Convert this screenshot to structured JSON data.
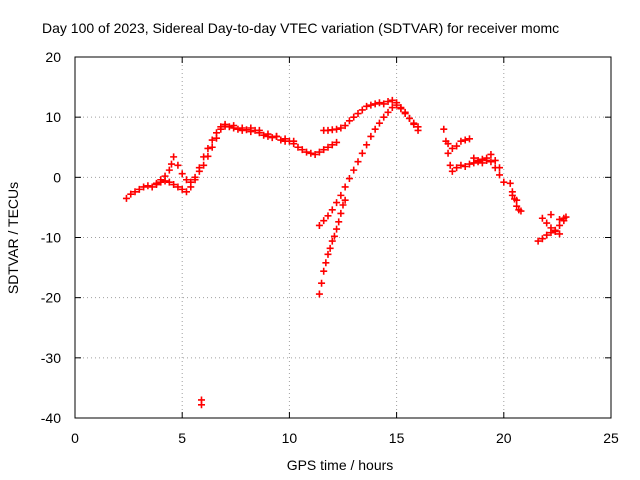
{
  "chart_data": {
    "type": "scatter",
    "title": "Day 100 of 2023, Sidereal Day-to-day VTEC variation (SDTVAR) for receiver momc",
    "xlabel": "GPS time / hours",
    "ylabel": "SDTVAR / TECUs",
    "xlim": [
      0,
      25
    ],
    "ylim": [
      -40,
      20
    ],
    "xticks": [
      0,
      5,
      10,
      15,
      20,
      25
    ],
    "yticks": [
      -40,
      -30,
      -20,
      -10,
      0,
      10,
      20
    ],
    "grid": true,
    "colors": {
      "series": "#ff0000",
      "grid": "#a0a0a0",
      "axes": "#000000"
    },
    "series": [
      {
        "name": "SDTVAR",
        "marker": "+",
        "points": [
          [
            2.4,
            -3.5
          ],
          [
            2.6,
            -2.8
          ],
          [
            2.8,
            -2.4
          ],
          [
            3.0,
            -2.0
          ],
          [
            3.2,
            -1.6
          ],
          [
            3.4,
            -1.4
          ],
          [
            3.6,
            -1.6
          ],
          [
            3.8,
            -1.2
          ],
          [
            4.0,
            -0.8
          ],
          [
            4.2,
            -0.6
          ],
          [
            4.4,
            -0.8
          ],
          [
            4.6,
            -1.2
          ],
          [
            4.8,
            -1.6
          ],
          [
            5.0,
            -2.0
          ],
          [
            5.2,
            -2.4
          ],
          [
            5.4,
            -1.6
          ],
          [
            5.6,
            -0.4
          ],
          [
            5.8,
            1.0
          ],
          [
            6.0,
            2.0
          ],
          [
            6.2,
            3.5
          ],
          [
            6.4,
            5.0
          ],
          [
            6.6,
            6.5
          ],
          [
            6.8,
            8.0
          ],
          [
            7.0,
            8.5
          ],
          [
            7.2,
            8.4
          ],
          [
            7.4,
            8.2
          ],
          [
            7.6,
            8.0
          ],
          [
            7.8,
            7.8
          ],
          [
            8.0,
            7.9
          ],
          [
            8.2,
            7.6
          ],
          [
            8.4,
            7.8
          ],
          [
            8.6,
            7.4
          ],
          [
            8.8,
            7.0
          ],
          [
            9.0,
            6.8
          ],
          [
            9.2,
            6.6
          ],
          [
            9.4,
            6.8
          ],
          [
            9.6,
            6.2
          ],
          [
            9.8,
            6.0
          ],
          [
            10.0,
            6.0
          ],
          [
            10.2,
            5.6
          ],
          [
            10.4,
            5.0
          ],
          [
            10.6,
            4.6
          ],
          [
            10.8,
            4.2
          ],
          [
            11.0,
            4.0
          ],
          [
            11.2,
            3.8
          ],
          [
            11.4,
            4.2
          ],
          [
            11.6,
            4.6
          ],
          [
            11.8,
            5.0
          ],
          [
            12.0,
            5.4
          ],
          [
            12.2,
            5.8
          ],
          [
            3.8,
            -1.0
          ],
          [
            4.0,
            -0.4
          ],
          [
            4.2,
            0.2
          ],
          [
            4.4,
            1.2
          ],
          [
            4.5,
            2.2
          ],
          [
            4.6,
            3.4
          ],
          [
            4.8,
            2.0
          ],
          [
            5.0,
            0.6
          ],
          [
            5.2,
            -0.4
          ],
          [
            5.4,
            -0.8
          ],
          [
            5.6,
            0.0
          ],
          [
            5.8,
            1.6
          ],
          [
            6.0,
            3.4
          ],
          [
            6.2,
            4.8
          ],
          [
            6.4,
            6.2
          ],
          [
            6.6,
            7.4
          ],
          [
            6.8,
            8.4
          ],
          [
            7.0,
            8.8
          ],
          [
            7.4,
            8.6
          ],
          [
            7.8,
            8.2
          ],
          [
            8.2,
            8.2
          ],
          [
            8.6,
            7.8
          ],
          [
            9.0,
            7.2
          ],
          [
            9.4,
            6.8
          ],
          [
            9.8,
            6.4
          ],
          [
            10.2,
            6.0
          ],
          [
            11.6,
            7.8
          ],
          [
            11.8,
            7.8
          ],
          [
            12.0,
            7.9
          ],
          [
            12.2,
            8.0
          ],
          [
            12.4,
            8.2
          ],
          [
            12.6,
            8.6
          ],
          [
            12.8,
            9.4
          ],
          [
            13.0,
            10.0
          ],
          [
            13.2,
            10.6
          ],
          [
            13.4,
            11.2
          ],
          [
            13.6,
            11.8
          ],
          [
            13.8,
            12.0
          ],
          [
            14.0,
            12.2
          ],
          [
            14.2,
            12.4
          ],
          [
            14.4,
            12.2
          ],
          [
            14.6,
            12.6
          ],
          [
            14.8,
            12.8
          ],
          [
            15.0,
            12.4
          ],
          [
            15.2,
            11.6
          ],
          [
            15.4,
            10.8
          ],
          [
            15.6,
            9.8
          ],
          [
            15.8,
            9.0
          ],
          [
            16.0,
            8.4
          ],
          [
            11.4,
            -8.0
          ],
          [
            11.6,
            -7.2
          ],
          [
            11.8,
            -6.4
          ],
          [
            12.0,
            -5.4
          ],
          [
            12.2,
            -4.2
          ],
          [
            12.4,
            -3.0
          ],
          [
            12.6,
            -1.6
          ],
          [
            12.8,
            -0.2
          ],
          [
            13.0,
            1.2
          ],
          [
            13.2,
            2.6
          ],
          [
            13.4,
            4.0
          ],
          [
            13.6,
            5.4
          ],
          [
            13.8,
            6.8
          ],
          [
            14.0,
            8.0
          ],
          [
            14.2,
            9.0
          ],
          [
            14.4,
            10.0
          ],
          [
            14.6,
            10.8
          ],
          [
            14.8,
            11.6
          ],
          [
            15.0,
            12.0
          ],
          [
            15.2,
            11.4
          ],
          [
            15.4,
            10.6
          ],
          [
            15.6,
            9.8
          ],
          [
            15.8,
            8.8
          ],
          [
            16.0,
            7.8
          ],
          [
            11.4,
            -19.4
          ],
          [
            11.5,
            -17.6
          ],
          [
            11.6,
            -15.6
          ],
          [
            11.7,
            -14.2
          ],
          [
            11.8,
            -12.8
          ],
          [
            11.9,
            -11.8
          ],
          [
            12.0,
            -10.6
          ],
          [
            12.1,
            -9.8
          ],
          [
            12.2,
            -8.6
          ],
          [
            12.3,
            -7.4
          ],
          [
            12.4,
            -6.0
          ],
          [
            12.5,
            -4.6
          ],
          [
            12.6,
            -3.8
          ],
          [
            5.9,
            -37.8
          ],
          [
            5.9,
            -37.0
          ],
          [
            17.2,
            8.0
          ],
          [
            17.3,
            6.0
          ],
          [
            17.4,
            4.0
          ],
          [
            17.5,
            2.0
          ],
          [
            17.6,
            1.0
          ],
          [
            17.8,
            1.6
          ],
          [
            18.0,
            2.0
          ],
          [
            18.2,
            1.8
          ],
          [
            18.4,
            2.2
          ],
          [
            18.6,
            2.4
          ],
          [
            18.8,
            2.8
          ],
          [
            19.0,
            3.0
          ],
          [
            19.2,
            3.2
          ],
          [
            19.4,
            2.6
          ],
          [
            19.6,
            1.6
          ],
          [
            19.8,
            0.4
          ],
          [
            20.0,
            -0.8
          ],
          [
            17.4,
            5.6
          ],
          [
            17.6,
            4.8
          ],
          [
            17.8,
            5.2
          ],
          [
            18.0,
            6.0
          ],
          [
            18.2,
            6.2
          ],
          [
            18.4,
            6.4
          ],
          [
            18.6,
            3.2
          ],
          [
            18.8,
            2.6
          ],
          [
            19.0,
            2.4
          ],
          [
            19.2,
            2.8
          ],
          [
            19.4,
            3.8
          ],
          [
            19.6,
            2.8
          ],
          [
            19.8,
            1.6
          ],
          [
            20.3,
            -1.0
          ],
          [
            20.4,
            -2.4
          ],
          [
            20.5,
            -3.6
          ],
          [
            20.6,
            -4.8
          ],
          [
            20.7,
            -5.4
          ],
          [
            20.4,
            -3.0
          ],
          [
            20.6,
            -3.8
          ],
          [
            20.8,
            -5.6
          ],
          [
            21.6,
            -10.6
          ],
          [
            21.8,
            -10.2
          ],
          [
            22.0,
            -9.6
          ],
          [
            22.2,
            -9.2
          ],
          [
            22.4,
            -8.8
          ],
          [
            22.6,
            -8.0
          ],
          [
            22.8,
            -7.2
          ],
          [
            22.9,
            -6.6
          ],
          [
            21.8,
            -6.8
          ],
          [
            22.0,
            -7.6
          ],
          [
            22.2,
            -8.4
          ],
          [
            22.4,
            -9.0
          ],
          [
            22.6,
            -9.4
          ],
          [
            22.2,
            -6.2
          ],
          [
            22.6,
            -7.0
          ],
          [
            22.8,
            -6.8
          ]
        ]
      }
    ]
  }
}
